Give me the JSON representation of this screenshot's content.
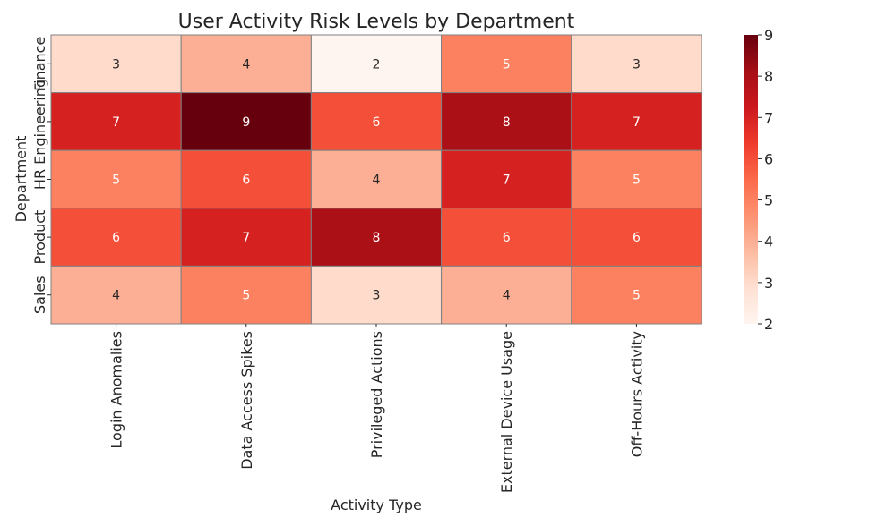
{
  "chart_data": {
    "type": "heatmap",
    "title": "User Activity Risk Levels by Department",
    "xlabel": "Activity Type",
    "ylabel": "Department",
    "x_categories": [
      "Login Anomalies",
      "Data Access Spikes",
      "Privileged Actions",
      "External Device Usage",
      "Off-Hours Activity"
    ],
    "y_categories": [
      "Finance",
      "Engineering",
      "HR",
      "Product",
      "Sales"
    ],
    "values": [
      [
        3,
        4,
        2,
        5,
        3
      ],
      [
        7,
        9,
        6,
        8,
        7
      ],
      [
        5,
        6,
        4,
        7,
        5
      ],
      [
        6,
        7,
        8,
        6,
        6
      ],
      [
        4,
        5,
        3,
        4,
        5
      ]
    ],
    "colorbar": {
      "min": 2,
      "max": 9,
      "ticks": [
        2,
        3,
        4,
        5,
        6,
        7,
        8,
        9
      ],
      "colormap": "Reds"
    },
    "cell_labels_shown": true,
    "cell_border_color": "#808080"
  }
}
